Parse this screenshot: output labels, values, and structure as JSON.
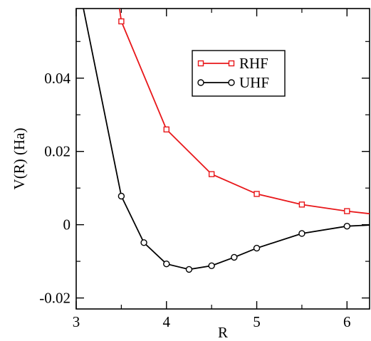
{
  "chart_data": {
    "type": "line",
    "title": "",
    "xlabel": "R",
    "ylabel": "V(R) (Ha)",
    "xlim": [
      3,
      6.25
    ],
    "ylim": [
      -0.023,
      0.059
    ],
    "xticks": [
      3,
      4,
      5,
      6
    ],
    "xtick_labels": [
      "3",
      "4",
      "5",
      "6"
    ],
    "x_minor_step": 0.5,
    "yticks": [
      -0.02,
      0,
      0.02,
      0.04
    ],
    "ytick_labels": [
      "-0.02",
      "0",
      "0.02",
      "0.04"
    ],
    "y_minor_step": 0.01,
    "grid": false,
    "legend": "top-right",
    "series": [
      {
        "name": "RHF",
        "color": "#e8171a",
        "marker": "square",
        "x": [
          3.5,
          4.0,
          4.5,
          5.0,
          5.5,
          6.0
        ],
        "y": [
          0.0555,
          0.026,
          0.0138,
          0.0084,
          0.0055,
          0.0037
        ],
        "line_start": [
          3.48,
          0.059
        ],
        "line_end": [
          6.25,
          0.003
        ]
      },
      {
        "name": "UHF",
        "color": "#000000",
        "marker": "circle",
        "x": [
          3.5,
          3.75,
          4.0,
          4.25,
          4.5,
          4.75,
          5.0,
          5.5,
          6.0
        ],
        "y": [
          0.0078,
          -0.0049,
          -0.0107,
          -0.0122,
          -0.0112,
          -0.0089,
          -0.0064,
          -0.0024,
          -0.0004
        ],
        "line_start": [
          3.08,
          0.059
        ],
        "line_end": [
          6.25,
          -0.0001
        ]
      }
    ]
  }
}
